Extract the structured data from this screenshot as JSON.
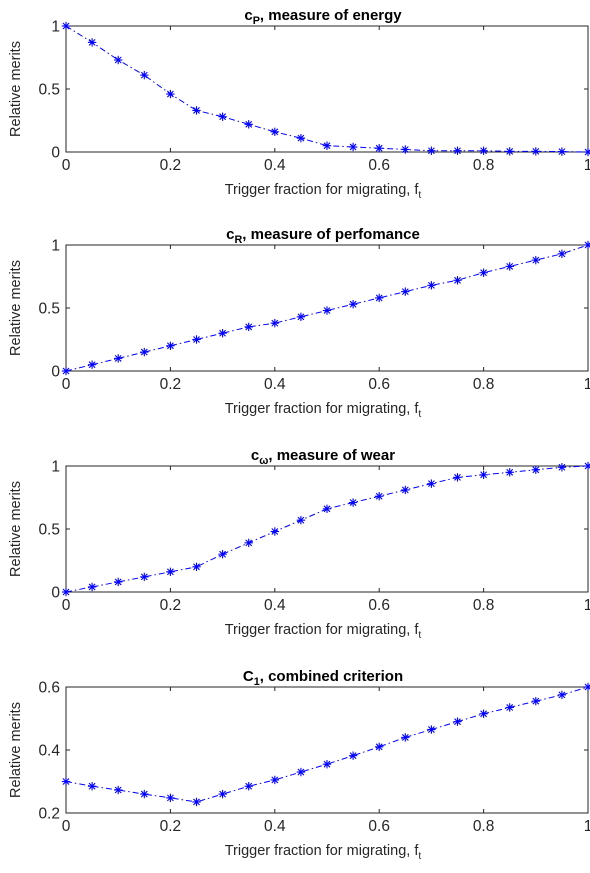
{
  "chart_data": [
    {
      "type": "line",
      "title": {
        "prefix": "c",
        "sub": "P",
        "suffix": ", measure of energy"
      },
      "xlabel": {
        "main": "Trigger fraction for migrating, f",
        "sub": "t"
      },
      "ylabel": "Relative merits",
      "xlim": [
        0,
        1
      ],
      "ylim": [
        0,
        1
      ],
      "xticks": [
        0,
        0.2,
        0.4,
        0.6,
        0.8,
        1
      ],
      "xtick_labels": [
        "0",
        "0.2",
        "0.4",
        "0.6",
        "0.8",
        "1"
      ],
      "yticks": [
        0,
        0.5,
        1
      ],
      "ytick_labels": [
        "0",
        "0.5",
        "1"
      ],
      "grid": true,
      "series": [
        {
          "color": "#0000ff",
          "marker": "asterisk",
          "line_style": "dash-dot",
          "x": [
            0,
            0.05,
            0.1,
            0.15,
            0.2,
            0.25,
            0.3,
            0.35,
            0.4,
            0.45,
            0.5,
            0.55,
            0.6,
            0.65,
            0.7,
            0.75,
            0.8,
            0.85,
            0.9,
            0.95,
            1
          ],
          "y": [
            1.0,
            0.87,
            0.73,
            0.61,
            0.46,
            0.33,
            0.28,
            0.22,
            0.16,
            0.11,
            0.05,
            0.04,
            0.03,
            0.02,
            0.01,
            0.01,
            0.01,
            0.005,
            0.005,
            0.003,
            0.0
          ]
        }
      ]
    },
    {
      "type": "line",
      "title": {
        "prefix": "c",
        "sub": "R",
        "suffix": ", measure of perfomance"
      },
      "xlabel": {
        "main": "Trigger fraction for migrating, f",
        "sub": "t"
      },
      "ylabel": "Relative merits",
      "xlim": [
        0,
        1
      ],
      "ylim": [
        0,
        1
      ],
      "xticks": [
        0,
        0.2,
        0.4,
        0.6,
        0.8,
        1
      ],
      "xtick_labels": [
        "0",
        "0.2",
        "0.4",
        "0.6",
        "0.8",
        "1"
      ],
      "yticks": [
        0,
        0.5,
        1
      ],
      "ytick_labels": [
        "0",
        "0.5",
        "1"
      ],
      "grid": true,
      "series": [
        {
          "color": "#0000ff",
          "marker": "asterisk",
          "line_style": "dash-dot",
          "x": [
            0,
            0.05,
            0.1,
            0.15,
            0.2,
            0.25,
            0.3,
            0.35,
            0.4,
            0.45,
            0.5,
            0.55,
            0.6,
            0.65,
            0.7,
            0.75,
            0.8,
            0.85,
            0.9,
            0.95,
            1
          ],
          "y": [
            0.0,
            0.05,
            0.1,
            0.15,
            0.2,
            0.25,
            0.3,
            0.35,
            0.38,
            0.43,
            0.48,
            0.53,
            0.58,
            0.63,
            0.68,
            0.72,
            0.78,
            0.83,
            0.88,
            0.93,
            1.0
          ]
        }
      ]
    },
    {
      "type": "line",
      "title": {
        "prefix": "c",
        "sub": "ω",
        "suffix": ", measure of wear"
      },
      "xlabel": {
        "main": "Trigger fraction for migrating, f",
        "sub": "t"
      },
      "ylabel": "Relative merits",
      "xlim": [
        0,
        1
      ],
      "ylim": [
        0,
        1
      ],
      "xticks": [
        0,
        0.2,
        0.4,
        0.6,
        0.8,
        1
      ],
      "xtick_labels": [
        "0",
        "0.2",
        "0.4",
        "0.6",
        "0.8",
        "1"
      ],
      "yticks": [
        0,
        0.5,
        1
      ],
      "ytick_labels": [
        "0",
        "0.5",
        "1"
      ],
      "grid": true,
      "series": [
        {
          "color": "#0000ff",
          "marker": "asterisk",
          "line_style": "dash-dot",
          "x": [
            0,
            0.05,
            0.1,
            0.15,
            0.2,
            0.25,
            0.3,
            0.35,
            0.4,
            0.45,
            0.5,
            0.55,
            0.6,
            0.65,
            0.7,
            0.75,
            0.8,
            0.85,
            0.9,
            0.95,
            1
          ],
          "y": [
            0.0,
            0.04,
            0.08,
            0.12,
            0.16,
            0.2,
            0.3,
            0.39,
            0.48,
            0.57,
            0.66,
            0.71,
            0.76,
            0.81,
            0.86,
            0.91,
            0.93,
            0.95,
            0.97,
            0.99,
            1.0
          ]
        }
      ]
    },
    {
      "type": "line",
      "title": {
        "prefix": "C",
        "sub": "1",
        "suffix": ", combined criterion"
      },
      "xlabel": {
        "main": "Trigger fraction for migrating, f",
        "sub": "t"
      },
      "ylabel": "Relative merits",
      "xlim": [
        0,
        1
      ],
      "ylim": [
        0.2,
        0.6
      ],
      "xticks": [
        0,
        0.2,
        0.4,
        0.6,
        0.8,
        1
      ],
      "xtick_labels": [
        "0",
        "0.2",
        "0.4",
        "0.6",
        "0.8",
        "1"
      ],
      "yticks": [
        0.2,
        0.4,
        0.6
      ],
      "ytick_labels": [
        "0.2",
        "0.4",
        "0.6"
      ],
      "grid": true,
      "series": [
        {
          "color": "#0000ff",
          "marker": "asterisk",
          "line_style": "dash-dot",
          "x": [
            0,
            0.05,
            0.1,
            0.15,
            0.2,
            0.25,
            0.3,
            0.35,
            0.4,
            0.45,
            0.5,
            0.55,
            0.6,
            0.65,
            0.7,
            0.75,
            0.8,
            0.85,
            0.9,
            0.95,
            1
          ],
          "y": [
            0.3,
            0.285,
            0.273,
            0.26,
            0.248,
            0.235,
            0.26,
            0.285,
            0.305,
            0.33,
            0.355,
            0.382,
            0.41,
            0.44,
            0.465,
            0.49,
            0.515,
            0.535,
            0.555,
            0.575,
            0.6
          ]
        }
      ]
    }
  ]
}
